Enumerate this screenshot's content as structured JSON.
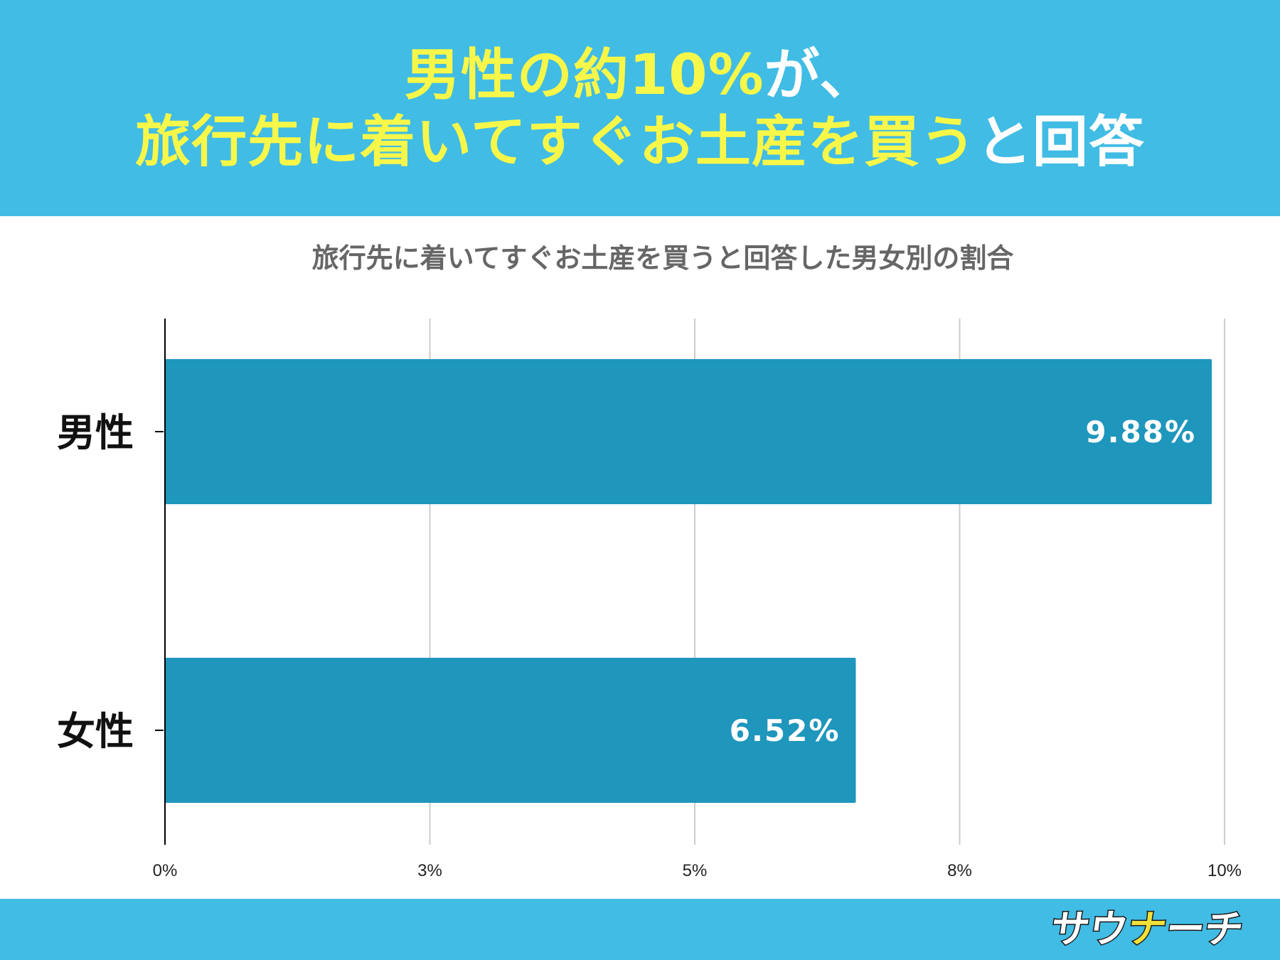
{
  "header": {
    "line1": [
      {
        "text": "男性の約10%",
        "color": "yellow"
      },
      {
        "text": "が、",
        "color": "white"
      }
    ],
    "line2": [
      {
        "text": "旅行先に着いてすぐお土産を買う",
        "color": "yellow"
      },
      {
        "text": "と回答",
        "color": "white"
      }
    ]
  },
  "colors": {
    "header_bg": "#41bce4",
    "headline_highlight": "#f7f74a",
    "headline_white": "#ffffff",
    "bar": "#1f96bc",
    "grid": "#cccccc"
  },
  "chart_data": {
    "type": "bar",
    "orientation": "horizontal",
    "title": "旅行先に着いてすぐお土産を買うと回答した男女別の割合",
    "categories": [
      "男性",
      "女性"
    ],
    "values": [
      9.88,
      6.52
    ],
    "data_labels": [
      "9.88%",
      "6.52%"
    ],
    "xlim": [
      0,
      10
    ],
    "ticks": [
      0,
      2.5,
      5,
      7.5,
      10
    ],
    "tick_labels": [
      "0%",
      "3%",
      "5%",
      "8%",
      "10%"
    ],
    "grid": true,
    "legend": "none"
  },
  "footer": {
    "logo_parts": [
      "サウ",
      "ナ",
      "ーチ"
    ]
  }
}
